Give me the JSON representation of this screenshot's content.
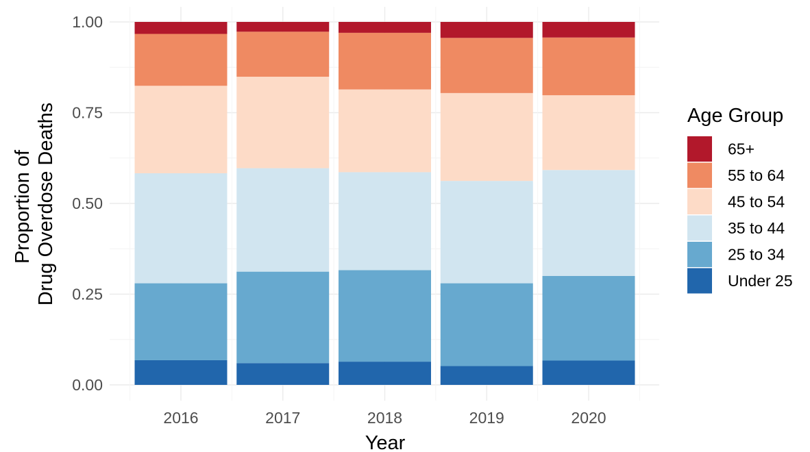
{
  "chart_data": {
    "type": "bar",
    "stacked": true,
    "xlabel": "Year",
    "ylabel": "Proportion of\nDrug Overdose Deaths",
    "ylim": [
      0,
      1
    ],
    "yticks": [
      "0.00",
      "0.25",
      "0.50",
      "0.75",
      "1.00"
    ],
    "grid": true,
    "legend_title": "Age Group",
    "legend_position": "right",
    "categories": [
      "2016",
      "2017",
      "2018",
      "2019",
      "2020"
    ],
    "series": [
      {
        "name": "Under 25",
        "color": "#2166ac",
        "values": [
          0.068,
          0.06,
          0.064,
          0.052,
          0.067
        ]
      },
      {
        "name": "25 to 34",
        "color": "#67a9cf",
        "values": [
          0.212,
          0.252,
          0.252,
          0.228,
          0.233
        ]
      },
      {
        "name": "35 to 44",
        "color": "#d1e5f0",
        "values": [
          0.303,
          0.285,
          0.27,
          0.282,
          0.292
        ]
      },
      {
        "name": "45 to 54",
        "color": "#fddbc7",
        "values": [
          0.241,
          0.252,
          0.228,
          0.242,
          0.206
        ]
      },
      {
        "name": "55 to 64",
        "color": "#ef8a62",
        "values": [
          0.143,
          0.124,
          0.156,
          0.152,
          0.159
        ]
      },
      {
        "name": "65+",
        "color": "#b2182b",
        "values": [
          0.033,
          0.027,
          0.03,
          0.044,
          0.043
        ]
      }
    ],
    "legend_order": [
      "65+",
      "55 to 64",
      "45 to 54",
      "35 to 44",
      "25 to 34",
      "Under 25"
    ]
  }
}
